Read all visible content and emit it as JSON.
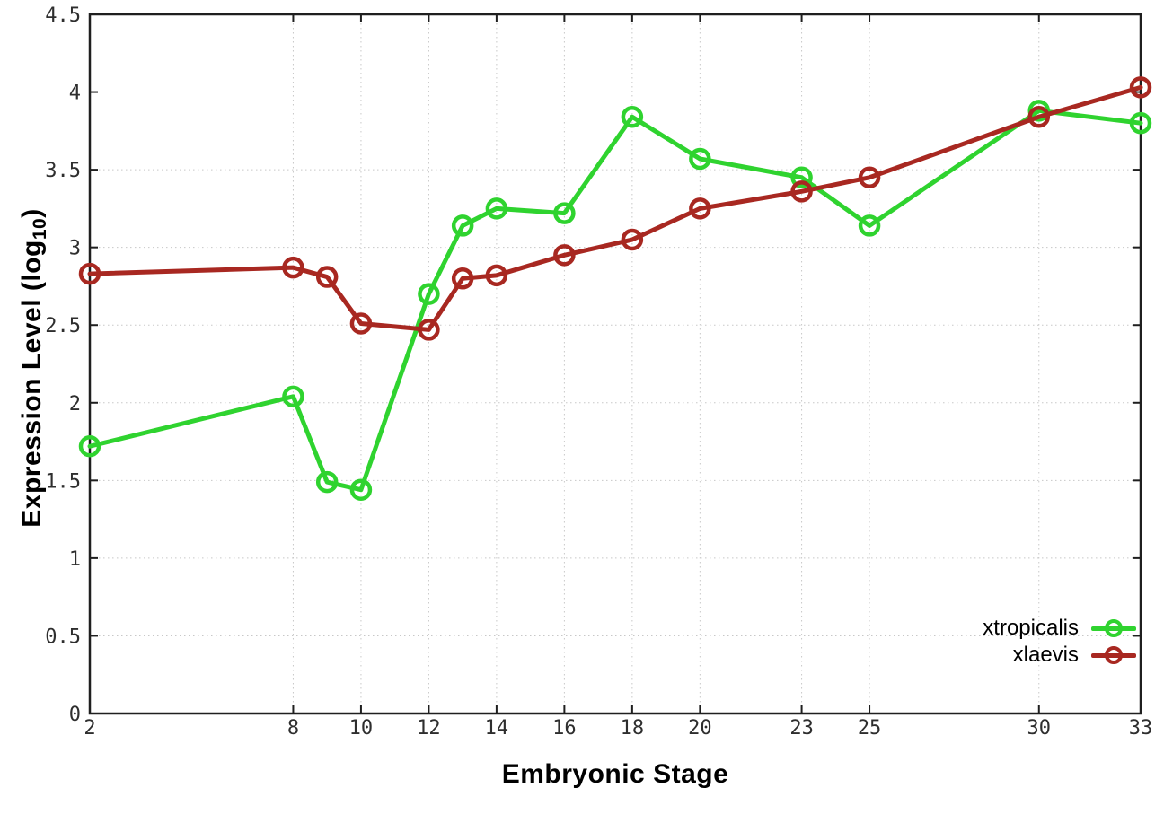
{
  "figure": {
    "xlabel": "Embryonic Stage",
    "ylabel_full": "Expression Level (log10)",
    "ylabel_main": "Expression Level (log",
    "ylabel_sub": "10",
    "ylabel_close": ")"
  },
  "chart_data": {
    "type": "line",
    "title": "",
    "xlabel": "Embryonic Stage",
    "ylabel": "Expression Level (log10)",
    "x": [
      2,
      8,
      9,
      10,
      12,
      13,
      14,
      16,
      18,
      20,
      23,
      25,
      30,
      33
    ],
    "xtick_labels": [
      "2",
      "8",
      "10",
      "12",
      "14",
      "16",
      "18",
      "20",
      "23",
      "25",
      "30",
      "33"
    ],
    "xtick_values": [
      2,
      8,
      10,
      12,
      14,
      16,
      18,
      20,
      23,
      25,
      30,
      33
    ],
    "ytick_labels": [
      "0",
      "0.5",
      "1",
      "1.5",
      "2",
      "2.5",
      "3",
      "3.5",
      "4",
      "4.5"
    ],
    "ytick_values": [
      0,
      0.5,
      1,
      1.5,
      2,
      2.5,
      3,
      3.5,
      4,
      4.5
    ],
    "xlim": [
      2,
      33
    ],
    "ylim": [
      0,
      4.5
    ],
    "grid": true,
    "legend_position": "bottom-right",
    "series": [
      {
        "name": "xtropicalis",
        "color": "#2fd32f",
        "marker": "open-circle",
        "values": [
          1.72,
          2.04,
          1.49,
          1.44,
          2.7,
          3.14,
          3.25,
          3.22,
          3.84,
          3.57,
          3.45,
          3.14,
          3.88,
          3.8
        ]
      },
      {
        "name": "xlaevis",
        "color": "#a82821",
        "marker": "open-circle",
        "values": [
          2.83,
          2.87,
          2.81,
          2.51,
          2.47,
          2.8,
          2.82,
          2.95,
          3.05,
          3.25,
          3.36,
          3.45,
          3.84,
          4.03
        ]
      }
    ],
    "style": {
      "grid_color": "#c8c8c8",
      "border_color": "#1f1f1f",
      "tick_label_color": "#2e2e2e",
      "background": "#ffffff"
    }
  }
}
